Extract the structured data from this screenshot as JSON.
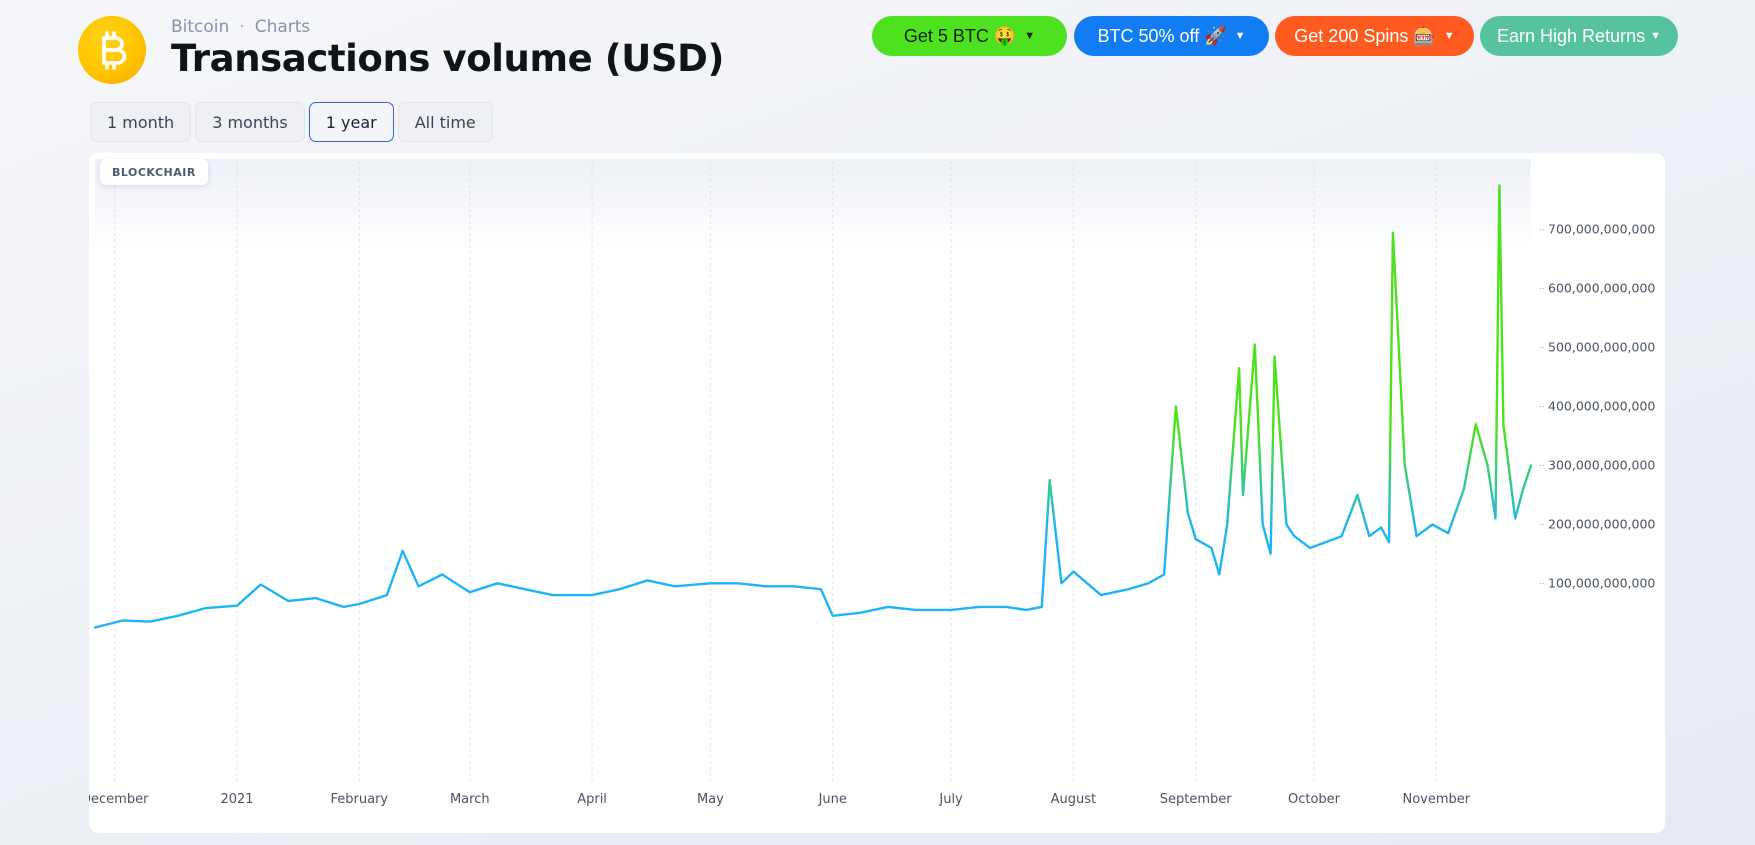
{
  "header": {
    "breadcrumb": [
      "Bitcoin",
      "Charts"
    ],
    "breadcrumb_sep": "·",
    "title": "Transactions volume (USD)",
    "logo_icon": "bitcoin-icon",
    "brand_color": "#ffc400"
  },
  "promos": [
    {
      "label": "Get 5 BTC 🤑",
      "color": "#4ee11f",
      "text_color": "#10210a"
    },
    {
      "label": "BTC 50% off 🚀",
      "color": "#127cf2",
      "text_color": "#ffffff"
    },
    {
      "label": "Get 200 Spins 🎰",
      "color": "#ff5a1f",
      "text_color": "#ffffff"
    },
    {
      "label": "Earn High Returns",
      "color": "#56c29f",
      "text_color": "#ffffff"
    }
  ],
  "range_tabs": [
    {
      "label": "1 month",
      "active": false
    },
    {
      "label": "3 months",
      "active": false
    },
    {
      "label": "1 year",
      "active": true
    },
    {
      "label": "All time",
      "active": false
    }
  ],
  "chart_data": {
    "type": "line",
    "title": "Transactions volume (USD)",
    "watermark": "BLOCKCHAIR",
    "line_color": "#1fb4f5",
    "spike_color": "#4ee11f",
    "x_tick_labels": [
      "December",
      "2021",
      "February",
      "March",
      "April",
      "May",
      "June",
      "July",
      "August",
      "September",
      "October",
      "November"
    ],
    "y_tick_labels": [
      "100,000,000,000",
      "200,000,000,000",
      "300,000,000,000",
      "400,000,000,000",
      "500,000,000,000",
      "600,000,000,000",
      "700,000,000,000"
    ],
    "y_ticks": [
      100000000000,
      200000000000,
      300000000000,
      400000000000,
      500000000000,
      600000000000,
      700000000000
    ],
    "ylim": [
      -120000000000,
      820000000000
    ],
    "xlim": [
      "2020-11-26",
      "2021-11-25"
    ],
    "grid": "vertical-dashed",
    "x": [
      "2020-11-26",
      "2020-12-03",
      "2020-12-10",
      "2020-12-17",
      "2020-12-24",
      "2021-01-01",
      "2021-01-07",
      "2021-01-14",
      "2021-01-21",
      "2021-01-28",
      "2021-02-01",
      "2021-02-08",
      "2021-02-12",
      "2021-02-16",
      "2021-02-22",
      "2021-03-01",
      "2021-03-08",
      "2021-03-15",
      "2021-03-22",
      "2021-04-01",
      "2021-04-08",
      "2021-04-15",
      "2021-04-22",
      "2021-05-01",
      "2021-05-08",
      "2021-05-15",
      "2021-05-22",
      "2021-05-29",
      "2021-06-01",
      "2021-06-08",
      "2021-06-15",
      "2021-06-22",
      "2021-07-01",
      "2021-07-08",
      "2021-07-15",
      "2021-07-20",
      "2021-07-24",
      "2021-07-26",
      "2021-07-29",
      "2021-08-01",
      "2021-08-08",
      "2021-08-15",
      "2021-08-20",
      "2021-08-24",
      "2021-08-27",
      "2021-08-30",
      "2021-09-01",
      "2021-09-05",
      "2021-09-07",
      "2021-09-09",
      "2021-09-12",
      "2021-09-13",
      "2021-09-16",
      "2021-09-18",
      "2021-09-20",
      "2021-09-21",
      "2021-09-24",
      "2021-09-26",
      "2021-09-30",
      "2021-10-04",
      "2021-10-08",
      "2021-10-12",
      "2021-10-15",
      "2021-10-18",
      "2021-10-20",
      "2021-10-21",
      "2021-10-24",
      "2021-10-27",
      "2021-10-31",
      "2021-11-04",
      "2021-11-08",
      "2021-11-11",
      "2021-11-14",
      "2021-11-16",
      "2021-11-17",
      "2021-11-18",
      "2021-11-21",
      "2021-11-23",
      "2021-11-25"
    ],
    "y": [
      25000000000,
      37000000000,
      35000000000,
      45000000000,
      58000000000,
      62000000000,
      98000000000,
      70000000000,
      75000000000,
      60000000000,
      65000000000,
      80000000000,
      155000000000,
      95000000000,
      115000000000,
      85000000000,
      100000000000,
      90000000000,
      80000000000,
      80000000000,
      90000000000,
      105000000000,
      95000000000,
      100000000000,
      100000000000,
      95000000000,
      95000000000,
      90000000000,
      45000000000,
      50000000000,
      60000000000,
      55000000000,
      55000000000,
      60000000000,
      60000000000,
      55000000000,
      60000000000,
      275000000000,
      100000000000,
      120000000000,
      80000000000,
      90000000000,
      100000000000,
      115000000000,
      400000000000,
      220000000000,
      175000000000,
      160000000000,
      115000000000,
      200000000000,
      465000000000,
      250000000000,
      505000000000,
      200000000000,
      150000000000,
      485000000000,
      200000000000,
      180000000000,
      160000000000,
      170000000000,
      180000000000,
      250000000000,
      180000000000,
      195000000000,
      170000000000,
      695000000000,
      300000000000,
      180000000000,
      200000000000,
      185000000000,
      260000000000,
      370000000000,
      300000000000,
      210000000000,
      775000000000,
      370000000000,
      210000000000,
      260000000000,
      300000000000
    ]
  }
}
